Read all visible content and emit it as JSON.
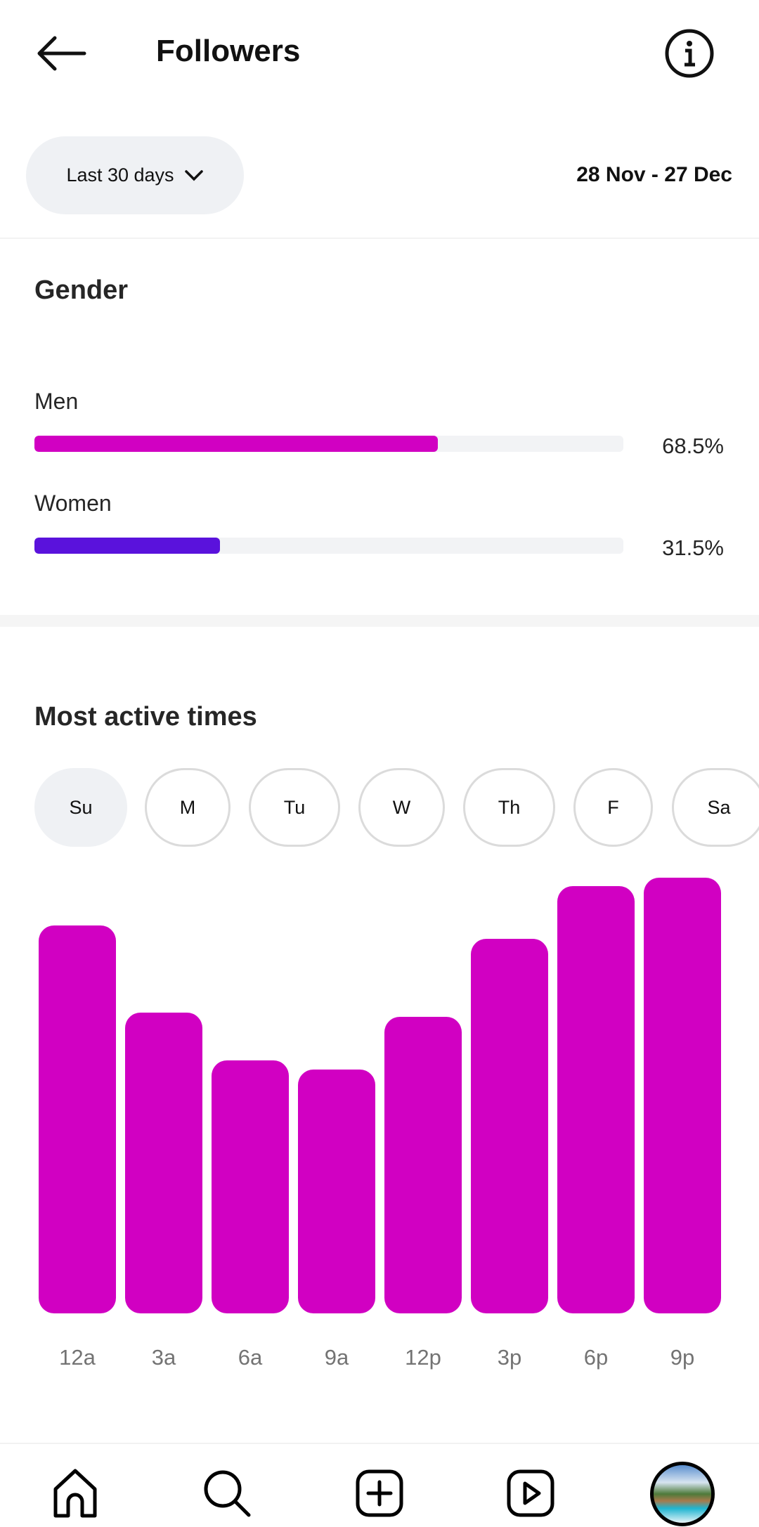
{
  "header": {
    "title": "Followers"
  },
  "filter": {
    "range_label": "Last 30 days",
    "date_range": "28 Nov - 27 Dec"
  },
  "gender": {
    "heading": "Gender",
    "items": [
      {
        "label": "Men",
        "value": 68.5,
        "display": "68.5%",
        "color": "#d100c2"
      },
      {
        "label": "Women",
        "value": 31.5,
        "display": "31.5%",
        "color": "#5a12dc"
      }
    ]
  },
  "active": {
    "heading": "Most active times",
    "days": [
      "Su",
      "M",
      "Tu",
      "W",
      "Th",
      "F",
      "Sa"
    ],
    "selected_day": "Su"
  },
  "chart_data": {
    "type": "bar",
    "title": "Most active times",
    "categories": [
      "12a",
      "3a",
      "6a",
      "9a",
      "12p",
      "3p",
      "6p",
      "9p"
    ],
    "values": [
      89,
      69,
      58,
      56,
      68,
      86,
      98,
      100
    ],
    "ylim": [
      0,
      100
    ],
    "color": "#d100c2",
    "grid": false
  },
  "nav": [
    "home",
    "search",
    "create",
    "reels",
    "profile"
  ]
}
